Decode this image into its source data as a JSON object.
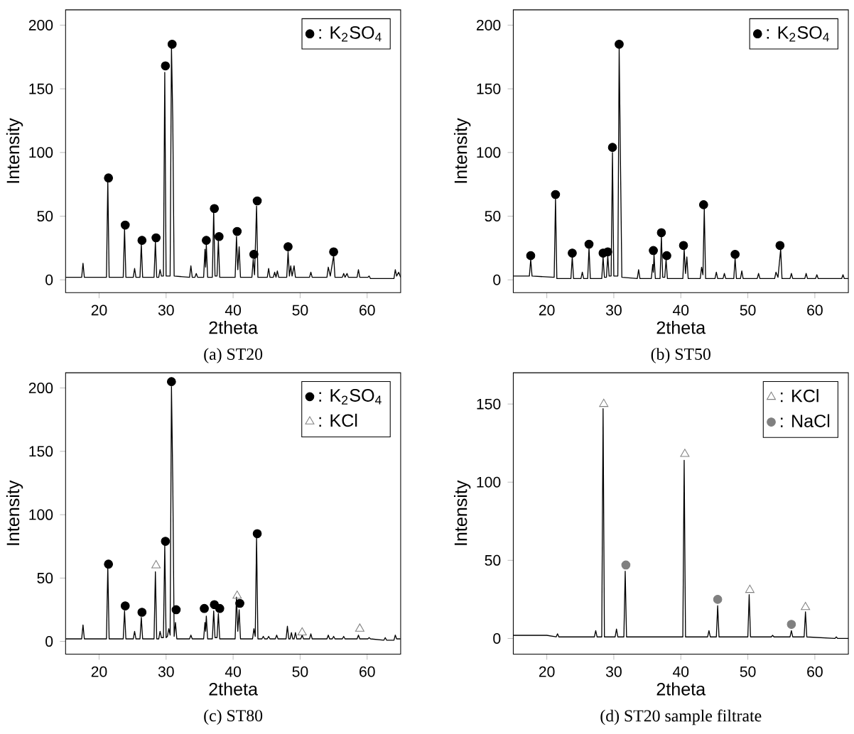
{
  "chart_data": [
    {
      "type": "line",
      "title": "(a) ST20",
      "xlabel": "2theta",
      "ylabel": "Intensity",
      "xlim": [
        15,
        65
      ],
      "ylim": [
        -10,
        212
      ],
      "xticks": [
        20,
        30,
        40,
        50,
        60
      ],
      "yticks": [
        0,
        50,
        100,
        150,
        200
      ],
      "legend": "top right",
      "series": [
        {
          "color": "#000000",
          "x": [
            15,
            17.4,
            17.6,
            17.8,
            21.1,
            21.3,
            21.5,
            23.6,
            23.8,
            24.0,
            25.1,
            25.3,
            25.5,
            26.1,
            26.3,
            26.5,
            28.2,
            28.4,
            28.6,
            28.9,
            29.1,
            29.3,
            29.6,
            29.8,
            30.0,
            30.6,
            30.8,
            31.0,
            31.2,
            33.5,
            33.7,
            33.9,
            34.3,
            34.5,
            34.7,
            35.6,
            35.8,
            35.9,
            36.0,
            36.2,
            36.9,
            37.1,
            37.3,
            37.6,
            37.8,
            38.0,
            40.3,
            40.5,
            40.7,
            40.9,
            41.1,
            42.8,
            43.0,
            43.2,
            43.5,
            43.7,
            45.1,
            45.3,
            45.5,
            46.0,
            46.2,
            46.4,
            46.6,
            46.8,
            48.0,
            48.2,
            48.4,
            48.6,
            48.8,
            49.1,
            49.3,
            51.4,
            51.6,
            51.8,
            54.0,
            54.2,
            54.5,
            55.0,
            55.2,
            56.3,
            56.5,
            56.7,
            57.0,
            57.2,
            58.5,
            58.7,
            58.9,
            60.1,
            60.3,
            60.5,
            64.0,
            64.2,
            64.4,
            64.7,
            65
          ],
          "values": [
            2,
            2,
            13,
            2,
            2,
            78,
            2,
            2,
            40,
            2,
            2,
            9,
            2,
            2,
            28,
            2,
            2,
            30,
            2,
            2,
            8,
            3,
            3,
            163,
            3,
            3,
            183,
            125,
            3,
            2,
            11,
            2,
            2,
            5,
            2,
            2,
            24,
            10,
            28,
            2,
            2,
            54,
            3,
            3,
            31,
            2,
            2,
            34,
            8,
            26,
            2,
            2,
            16,
            4,
            58,
            2,
            2,
            9,
            2,
            2,
            6,
            2,
            7,
            2,
            2,
            22,
            3,
            11,
            3,
            11,
            2,
            2,
            6,
            2,
            2,
            10,
            3,
            19,
            2,
            2,
            5,
            2,
            5,
            2,
            2,
            8,
            2,
            2,
            3,
            1,
            1,
            8,
            3,
            6,
            2
          ]
        },
        {
          "name": ": K$_{2}$SO$_{4}$",
          "type": "scatter",
          "marker": "circle",
          "color": "#000000",
          "x": [
            21.4,
            23.9,
            26.4,
            28.5,
            29.9,
            30.9,
            36.0,
            37.2,
            37.9,
            40.6,
            43.1,
            43.6,
            48.2,
            55.0
          ],
          "values": [
            80,
            43,
            31,
            33,
            168,
            185,
            31,
            56,
            34,
            38,
            20,
            62,
            26,
            22
          ]
        }
      ]
    },
    {
      "type": "line",
      "title": "(b) ST50",
      "xlabel": "2theta",
      "ylabel": "Intensity",
      "xlim": [
        15,
        65
      ],
      "ylim": [
        -10,
        212
      ],
      "xticks": [
        20,
        30,
        40,
        50,
        60
      ],
      "yticks": [
        0,
        50,
        100,
        150,
        200
      ],
      "legend": "top right",
      "series": [
        {
          "color": "#000000",
          "x": [
            15,
            17.4,
            17.6,
            17.8,
            21.1,
            21.3,
            21.5,
            23.6,
            23.8,
            24.0,
            25.1,
            25.3,
            25.5,
            26.1,
            26.3,
            26.5,
            28.2,
            28.4,
            28.6,
            28.9,
            29.1,
            29.3,
            29.6,
            29.8,
            30.0,
            30.6,
            30.8,
            31.0,
            31.2,
            33.5,
            33.7,
            33.9,
            35.6,
            35.8,
            35.9,
            36.0,
            36.2,
            36.9,
            37.1,
            37.3,
            37.6,
            37.8,
            38.0,
            40.3,
            40.5,
            40.7,
            40.9,
            41.1,
            42.9,
            43.1,
            43.3,
            43.5,
            43.7,
            45.1,
            45.3,
            45.5,
            46.3,
            46.5,
            46.7,
            47.9,
            48.1,
            48.3,
            48.9,
            49.1,
            49.3,
            51.4,
            51.6,
            51.8,
            54.0,
            54.2,
            54.5,
            54.9,
            55.1,
            56.3,
            56.5,
            56.7,
            58.5,
            58.7,
            58.9,
            60.1,
            60.3,
            60.5,
            64.0,
            64.2,
            64.4,
            65
          ],
          "values": [
            3,
            3,
            16,
            3,
            2,
            64,
            1,
            1,
            18,
            1,
            1,
            6,
            1,
            1,
            25,
            1,
            1,
            18,
            2,
            2,
            19,
            3,
            3,
            100,
            3,
            3,
            182,
            90,
            2,
            1,
            8,
            1,
            1,
            12,
            6,
            20,
            1,
            1,
            34,
            2,
            2,
            16,
            1,
            1,
            24,
            5,
            18,
            1,
            1,
            10,
            4,
            56,
            1,
            1,
            6,
            1,
            1,
            5,
            1,
            1,
            17,
            1,
            1,
            7,
            1,
            1,
            5,
            1,
            1,
            6,
            2,
            24,
            1,
            1,
            5,
            1,
            1,
            5,
            1,
            1,
            4,
            1,
            1,
            4,
            1,
            1
          ]
        },
        {
          "name": ": K$_{2}$SO$_{4}$",
          "type": "scatter",
          "marker": "circle",
          "color": "#000000",
          "x": [
            17.6,
            21.3,
            23.8,
            26.3,
            28.4,
            29.1,
            29.8,
            30.8,
            35.9,
            37.1,
            37.9,
            40.4,
            43.4,
            48.1,
            54.8
          ],
          "values": [
            19,
            67,
            21,
            28,
            21,
            22,
            104,
            185,
            23,
            37,
            19,
            27,
            59,
            20,
            27
          ]
        }
      ]
    },
    {
      "type": "line",
      "title": "(c) ST80",
      "xlabel": "2theta",
      "ylabel": "Intensity",
      "xlim": [
        15,
        65
      ],
      "ylim": [
        -10,
        212
      ],
      "xticks": [
        20,
        30,
        40,
        50,
        60
      ],
      "yticks": [
        0,
        50,
        100,
        150,
        200
      ],
      "legend": "top right",
      "series": [
        {
          "color": "#000000",
          "x": [
            15,
            17.4,
            17.6,
            17.8,
            21.1,
            21.3,
            21.5,
            23.6,
            23.8,
            24.0,
            25.1,
            25.3,
            25.5,
            26.1,
            26.3,
            26.5,
            28.2,
            28.4,
            28.6,
            28.9,
            29.1,
            29.3,
            29.6,
            29.8,
            30.0,
            30.2,
            30.4,
            30.6,
            30.8,
            31.0,
            31.2,
            31.4,
            31.6,
            33.5,
            33.7,
            33.9,
            35.6,
            35.8,
            35.9,
            36.0,
            36.2,
            36.9,
            37.1,
            37.3,
            37.6,
            37.8,
            38.0,
            40.3,
            40.5,
            40.7,
            40.9,
            41.1,
            42.9,
            43.1,
            43.3,
            43.5,
            43.7,
            44.3,
            44.5,
            44.7,
            45.1,
            45.3,
            45.5,
            46.3,
            46.5,
            46.7,
            47.9,
            48.1,
            48.3,
            48.5,
            48.7,
            48.9,
            49.1,
            49.3,
            49.5,
            50.1,
            50.3,
            50.5,
            51.4,
            51.6,
            51.8,
            54.0,
            54.2,
            54.4,
            54.8,
            55.0,
            55.2,
            56.3,
            56.5,
            56.7,
            58.5,
            58.7,
            58.9,
            60.1,
            60.3,
            60.5,
            62.5,
            62.7,
            62.9,
            64.0,
            64.2,
            64.4,
            65
          ],
          "values": [
            2,
            2,
            13,
            2,
            2,
            59,
            2,
            2,
            24,
            2,
            2,
            8,
            2,
            2,
            19,
            2,
            2,
            55,
            2,
            2,
            8,
            3,
            3,
            76,
            3,
            4,
            10,
            5,
            201,
            125,
            4,
            15,
            2,
            2,
            5,
            2,
            2,
            15,
            8,
            20,
            2,
            2,
            24,
            3,
            3,
            22,
            2,
            2,
            35,
            8,
            25,
            2,
            2,
            10,
            4,
            82,
            2,
            2,
            4,
            2,
            2,
            4,
            2,
            2,
            5,
            2,
            2,
            12,
            2,
            2,
            7,
            2,
            2,
            7,
            2,
            2,
            5,
            2,
            2,
            6,
            2,
            2,
            5,
            2,
            2,
            4,
            2,
            2,
            4,
            2,
            2,
            5,
            2,
            2,
            3,
            2,
            1,
            3,
            1,
            1,
            5,
            2,
            2
          ]
        },
        {
          "name": ": K$_{2}$SO$_{4}$",
          "type": "scatter",
          "marker": "circle",
          "color": "#000000",
          "x": [
            21.4,
            23.9,
            26.4,
            29.9,
            30.8,
            31.5,
            35.7,
            37.2,
            38.0,
            41.0,
            43.6
          ],
          "values": [
            61,
            28,
            23,
            79,
            205,
            25,
            26,
            29,
            26,
            30,
            85
          ]
        },
        {
          "name": ": KCl",
          "type": "scatter",
          "marker": "triangle",
          "color": "#808080",
          "x": [
            28.5,
            40.6,
            50.3,
            58.9
          ],
          "values": [
            60,
            36,
            7,
            10
          ]
        }
      ]
    },
    {
      "type": "line",
      "title": "(d) ST20 sample filtrate",
      "xlabel": "2theta",
      "ylabel": "Intensity",
      "xlim": [
        15,
        65
      ],
      "ylim": [
        -10,
        170
      ],
      "xticks": [
        20,
        30,
        40,
        50,
        60
      ],
      "yticks": [
        0,
        50,
        100,
        150
      ],
      "legend": "top right",
      "series": [
        {
          "color": "#000000",
          "x": [
            15,
            20.0,
            21.4,
            21.6,
            21.8,
            27.1,
            27.3,
            27.5,
            28.2,
            28.4,
            28.6,
            30.2,
            30.4,
            30.6,
            31.5,
            31.7,
            31.9,
            40.3,
            40.5,
            40.7,
            44.0,
            44.2,
            44.4,
            45.3,
            45.5,
            45.7,
            50.0,
            50.2,
            50.4,
            53.5,
            53.7,
            53.9,
            56.3,
            56.5,
            56.7,
            58.4,
            58.6,
            58.8,
            63.0,
            63.2,
            63.4,
            65
          ],
          "values": [
            2,
            2,
            1,
            3,
            1,
            1,
            5,
            1,
            1,
            147,
            1,
            1,
            6,
            1,
            1,
            43,
            1,
            1,
            114,
            1,
            1,
            5,
            1,
            1,
            21,
            1,
            1,
            28,
            1,
            1,
            2,
            1,
            1,
            5,
            1,
            1,
            17,
            1,
            0,
            1,
            0,
            0
          ]
        },
        {
          "name": ": KCl",
          "type": "scatter",
          "marker": "triangle",
          "color": "#808080",
          "x": [
            28.5,
            40.6,
            50.3,
            58.6
          ],
          "values": [
            150,
            118,
            31,
            20
          ]
        },
        {
          "name": ": NaCl",
          "type": "scatter",
          "marker": "circle",
          "color": "#808080",
          "x": [
            31.8,
            45.5,
            56.5
          ],
          "values": [
            47,
            25,
            9
          ]
        }
      ]
    }
  ]
}
